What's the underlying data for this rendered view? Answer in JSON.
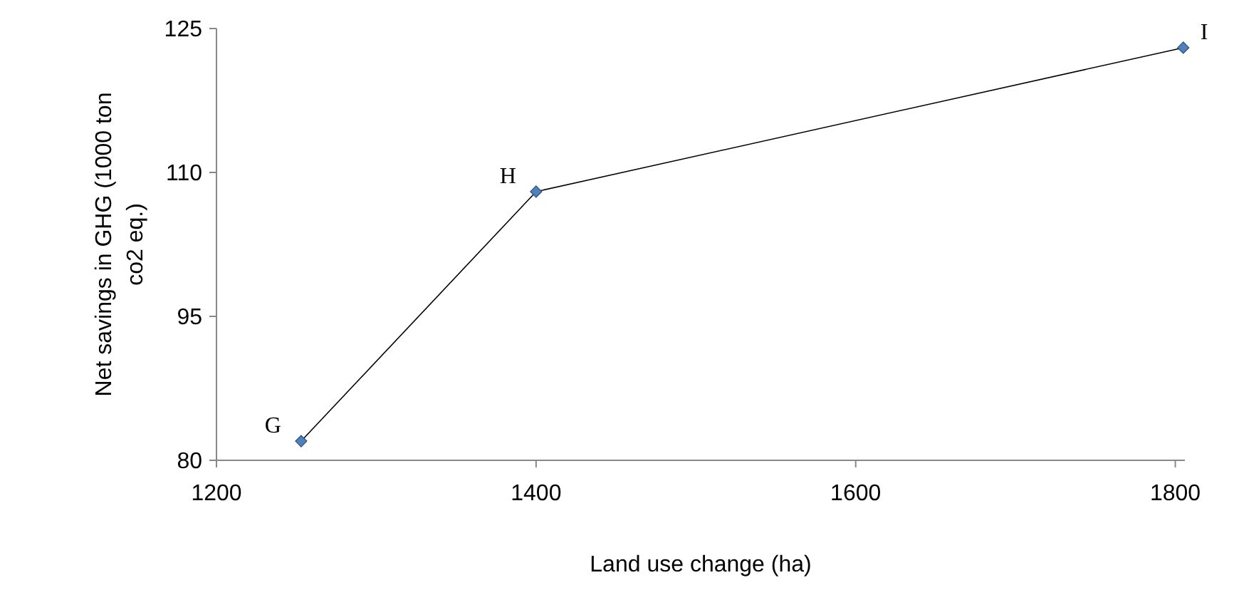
{
  "chart_data": {
    "type": "line",
    "xlabel": "Land use change (ha)",
    "ylabel": "Net savings in GHG (1000 ton co2 eq.)",
    "x": [
      1253,
      1400,
      1805
    ],
    "series": [
      {
        "color": "#4f81bd",
        "values": [
          82,
          108,
          123
        ]
      }
    ],
    "xlim": [
      1200,
      1806
    ],
    "xticks": [
      1200,
      1400,
      1600,
      1800
    ],
    "ylim": [
      80,
      125
    ],
    "yticks": [
      80,
      95,
      110,
      125
    ],
    "grid": false,
    "marker": "diamond",
    "line_style": "solid",
    "annotations": [
      {
        "text": "G",
        "x": 1253,
        "y": 82
      },
      {
        "text": "H",
        "x": 1400,
        "y": 108
      },
      {
        "text": "I",
        "x": 1805,
        "y": 123
      }
    ]
  }
}
